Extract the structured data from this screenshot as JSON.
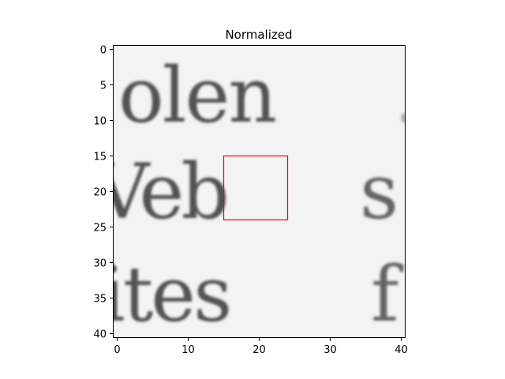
{
  "chart_data": {
    "type": "heatmap",
    "title": "Normalized",
    "colormap": "gray",
    "grid": false,
    "xlim": [
      -0.5,
      40.5
    ],
    "ylim": [
      40.5,
      -0.5
    ],
    "x_ticks": [
      0,
      10,
      20,
      30,
      40
    ],
    "x_tick_labels": [
      "0",
      "10",
      "20",
      "30",
      "40"
    ],
    "y_ticks": [
      0,
      5,
      10,
      15,
      20,
      25,
      30,
      35,
      40
    ],
    "y_tick_labels": [
      "0",
      "5",
      "10",
      "15",
      "20",
      "25",
      "30",
      "35",
      "40"
    ],
    "image_content": "Grayscale crop of scanned printed text, three partial lines: \"olen\", \"Veb s\", \"ites f\"",
    "highlight_box": {
      "x0": 15,
      "y0": 15,
      "x1": 24,
      "y1": 24,
      "color": "#ff0000"
    }
  }
}
